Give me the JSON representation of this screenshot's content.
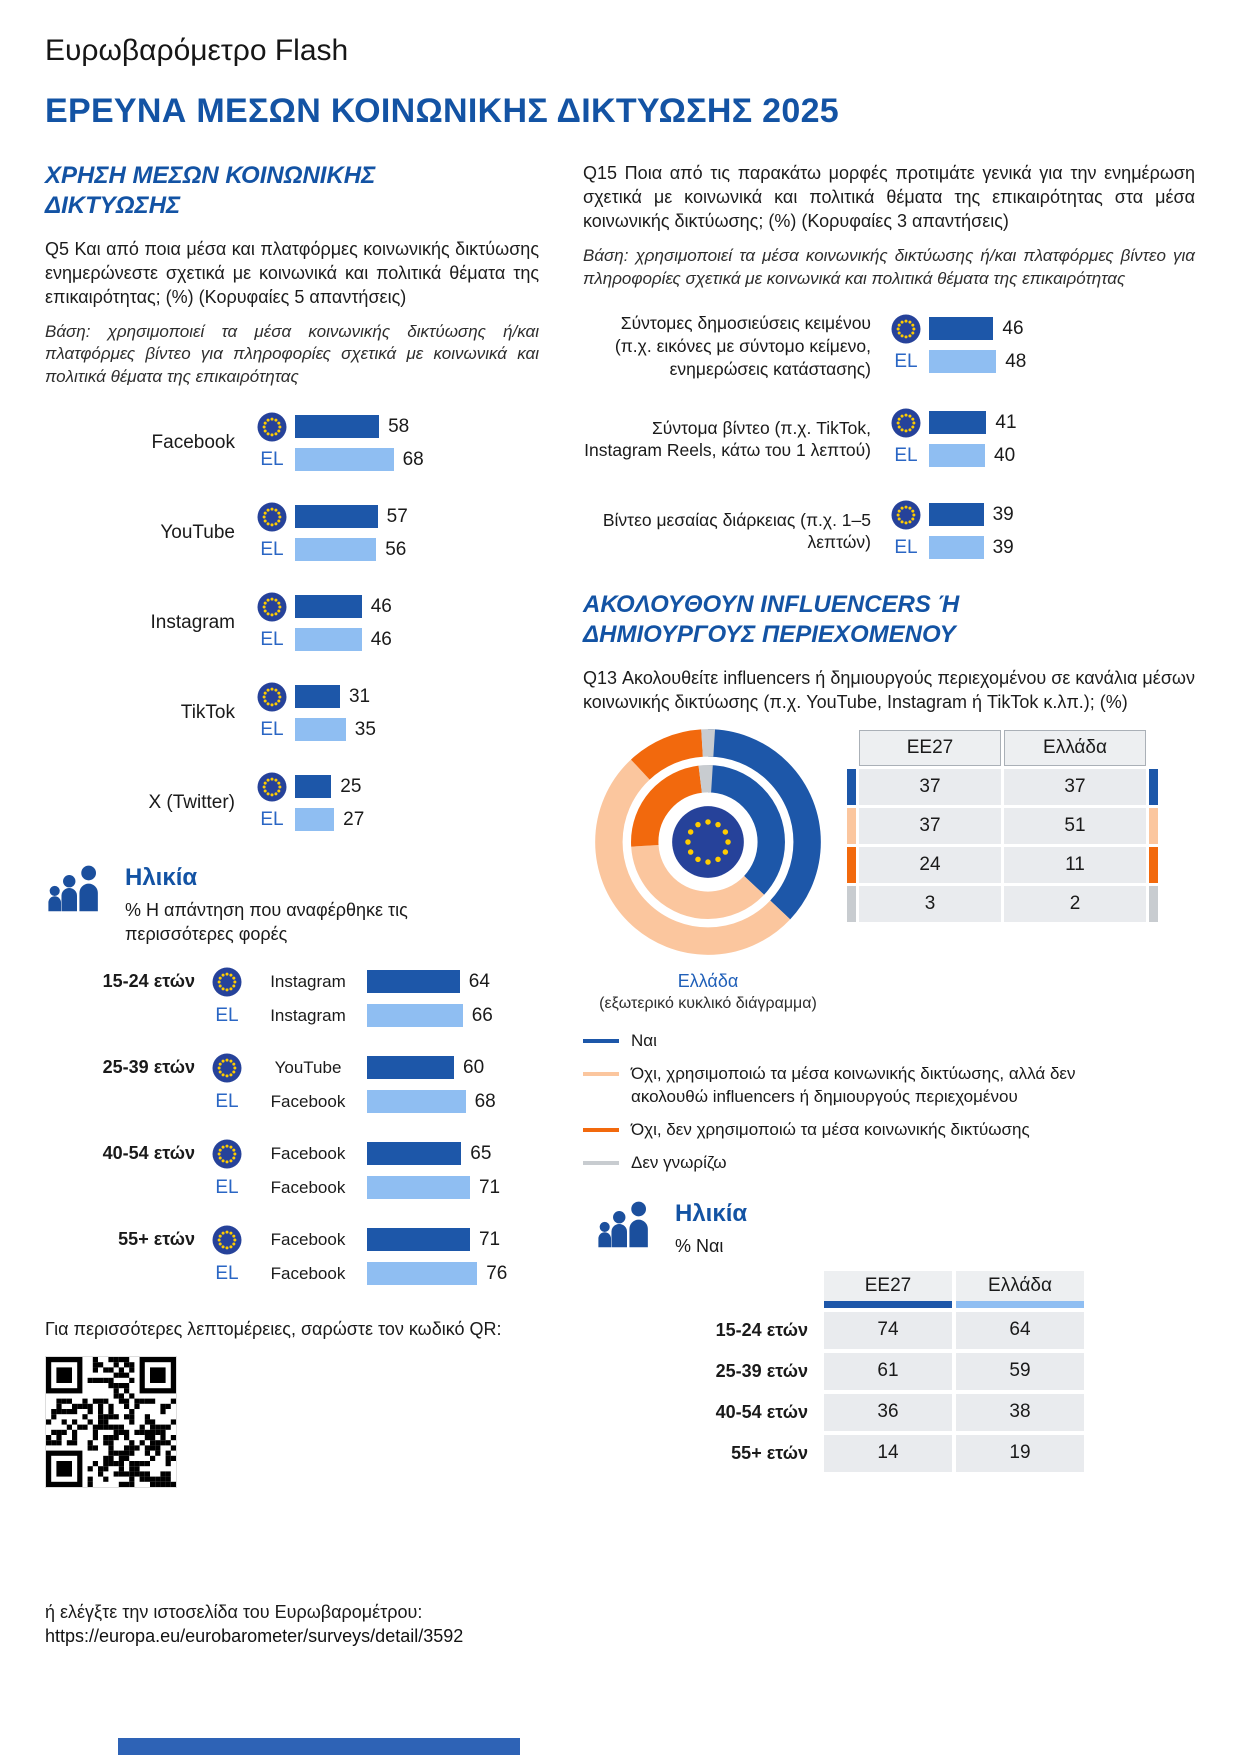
{
  "header": {
    "brand": "Ευρωβαρόμετρο Flash",
    "title": "ΕΡΕΥΝΑ ΜΕΣΩΝ ΚΟΙΝΩΝΙΚΗΣ ΔΙΚΤΥΩΣΗΣ 2025"
  },
  "el_label": "EL",
  "colors": {
    "heading_blue": "#1353a4",
    "eu_bar": "#1d57a9",
    "el_bar": "#8fbef2",
    "orange": "#f2690d",
    "peach": "#fbc69e",
    "gray": "#c8ccd0",
    "footer_band": "#2e63b6"
  },
  "left": {
    "section_title": "ΧΡΗΣΗ ΜΕΣΩΝ ΚΟΙΝΩΝΙΚΗΣ ΔΙΚΤΥΩΣΗΣ",
    "q5_text": "Q5 Και από ποια μέσα και πλατφόρμες κοινωνικής δικτύωσης ενημερώνεστε σχετικά με κοινωνικά και πολιτικά θέματα της επικαιρότητας; (%) (Κορυφαίες 5 απαντήσεις)",
    "base_text": "Βάση: χρησιμοποιεί τα μέσα κοινωνικής δικτύωσης ή/και πλατφόρμες βίντεο για πληροφορίες σχετικά με κοινωνικά και πολιτικά θέματα της επικαιρότητας",
    "age_title": "Ηλικία",
    "age_subtitle": "% Η απάντηση που αναφέρθηκε τις περισσότερες φορές",
    "qr_prompt": "Για περισσότερες λεπτομέρειες, σαρώστε τον κωδικό QR:",
    "qr_alt": "ή ελέγξτε την ιστοσελίδα του Ευρωβαρομέτρου:",
    "qr_url": "https://europa.eu/eurobarometer/surveys/detail/3592"
  },
  "right": {
    "q15_text": "Q15 Ποια από τις παρακάτω μορφές προτιμάτε γενικά για την ενημέρωση σχετικά με κοινωνικά και πολιτικά θέματα της επικαιρότητας στα μέσα κοινωνικής δικτύωσης; (%) (Κορυφαίες 3 απαντήσεις)",
    "base_text": "Βάση: χρησιμοποιεί τα μέσα κοινωνικής δικτύωσης ή/και πλατφόρμες βίντεο για πληροφορίες σχετικά με κοινωνικά και πολιτικά θέματα της επικαιρότητας",
    "section_title": "ΑΚΟΛΟΥΘΟΥΝ INFLUENCERS Ή ΔΗΜΙΟΥΡΓΟΥΣ ΠΕΡΙΕΧΟΜΕΝΟΥ",
    "q13_text": "Q13 Ακολουθείτε influencers ή δημιουργούς περιεχομένου σε κανάλια μέσων κοινωνικής δικτύωσης (π.χ. YouTube, Instagram ή TikTok κ.λπ.); (%)",
    "donut_caption_country": "Ελλάδα",
    "donut_caption_note": "(εξωτερικό κυκλικό διάγραμμα)",
    "age_title": "Ηλικία",
    "age_subtitle": "% Ναι"
  },
  "chart_data": [
    {
      "id": "q5_platforms",
      "type": "bar",
      "categories": [
        "Facebook",
        "YouTube",
        "Instagram",
        "TikTok",
        "X (Twitter)"
      ],
      "series": [
        {
          "name": "EE27",
          "values": [
            58,
            57,
            46,
            31,
            25
          ]
        },
        {
          "name": "EL",
          "values": [
            68,
            56,
            46,
            35,
            27
          ]
        }
      ],
      "unit": "%",
      "xlim": [
        0,
        100
      ]
    },
    {
      "id": "q5_top_answer_by_age",
      "type": "bar",
      "rows": [
        {
          "group": "15-24 ετών",
          "eu_answer": "Instagram",
          "eu_value": 64,
          "el_answer": "Instagram",
          "el_value": 66
        },
        {
          "group": "25-39 ετών",
          "eu_answer": "YouTube",
          "eu_value": 60,
          "el_answer": "Facebook",
          "el_value": 68
        },
        {
          "group": "40-54 ετών",
          "eu_answer": "Facebook",
          "eu_value": 65,
          "el_answer": "Facebook",
          "el_value": 71
        },
        {
          "group": "55+ ετών",
          "eu_answer": "Facebook",
          "eu_value": 71,
          "el_answer": "Facebook",
          "el_value": 76
        }
      ],
      "unit": "%"
    },
    {
      "id": "q15_formats",
      "type": "bar",
      "categories": [
        "Σύντομες δημοσιεύσεις κειμένου (π.χ. εικόνες με σύντομο κείμενο, ενημερώσεις κατάστασης)",
        "Σύντομα βίντεο (π.χ. TikTok, Instagram Reels, κάτω του 1 λεπτού)",
        "Βίντεο μεσαίας διάρκειας (π.χ. 1–5 λεπτών)"
      ],
      "series": [
        {
          "name": "EE27",
          "values": [
            46,
            41,
            39
          ]
        },
        {
          "name": "EL",
          "values": [
            48,
            40,
            39
          ]
        }
      ],
      "unit": "%"
    },
    {
      "id": "q13_influencers_donut",
      "type": "pie",
      "labels": [
        "Ναι",
        "Όχι, χρησιμοποιώ τα μέσα κοινωνικής δικτύωσης, αλλά δεν ακολουθώ influencers ή δημιουργούς περιεχομένου",
        "Όχι, δεν χρησιμοποιώ τα μέσα κοινωνικής δικτύωσης",
        "Δεν γνωρίζω"
      ],
      "colors": [
        "#1d57a9",
        "#fbc69e",
        "#f2690d",
        "#c8ccd0"
      ],
      "rings": [
        {
          "name": "EE27",
          "values": [
            37,
            37,
            24,
            3
          ]
        },
        {
          "name": "Ελλάδα",
          "values": [
            37,
            51,
            11,
            2
          ]
        }
      ],
      "table_columns": [
        "EE27",
        "Ελλάδα"
      ],
      "unit": "%"
    },
    {
      "id": "q13_yes_by_age",
      "type": "table",
      "columns": [
        "EE27",
        "Ελλάδα"
      ],
      "rows": [
        {
          "label": "15-24 ετών",
          "ee27": 74,
          "ellada": 64
        },
        {
          "label": "25-39 ετών",
          "ee27": 61,
          "ellada": 59
        },
        {
          "label": "40-54 ετών",
          "ee27": 36,
          "ellada": 38
        },
        {
          "label": "55+ ετών",
          "ee27": 14,
          "ellada": 19
        }
      ],
      "unit": "%"
    }
  ]
}
